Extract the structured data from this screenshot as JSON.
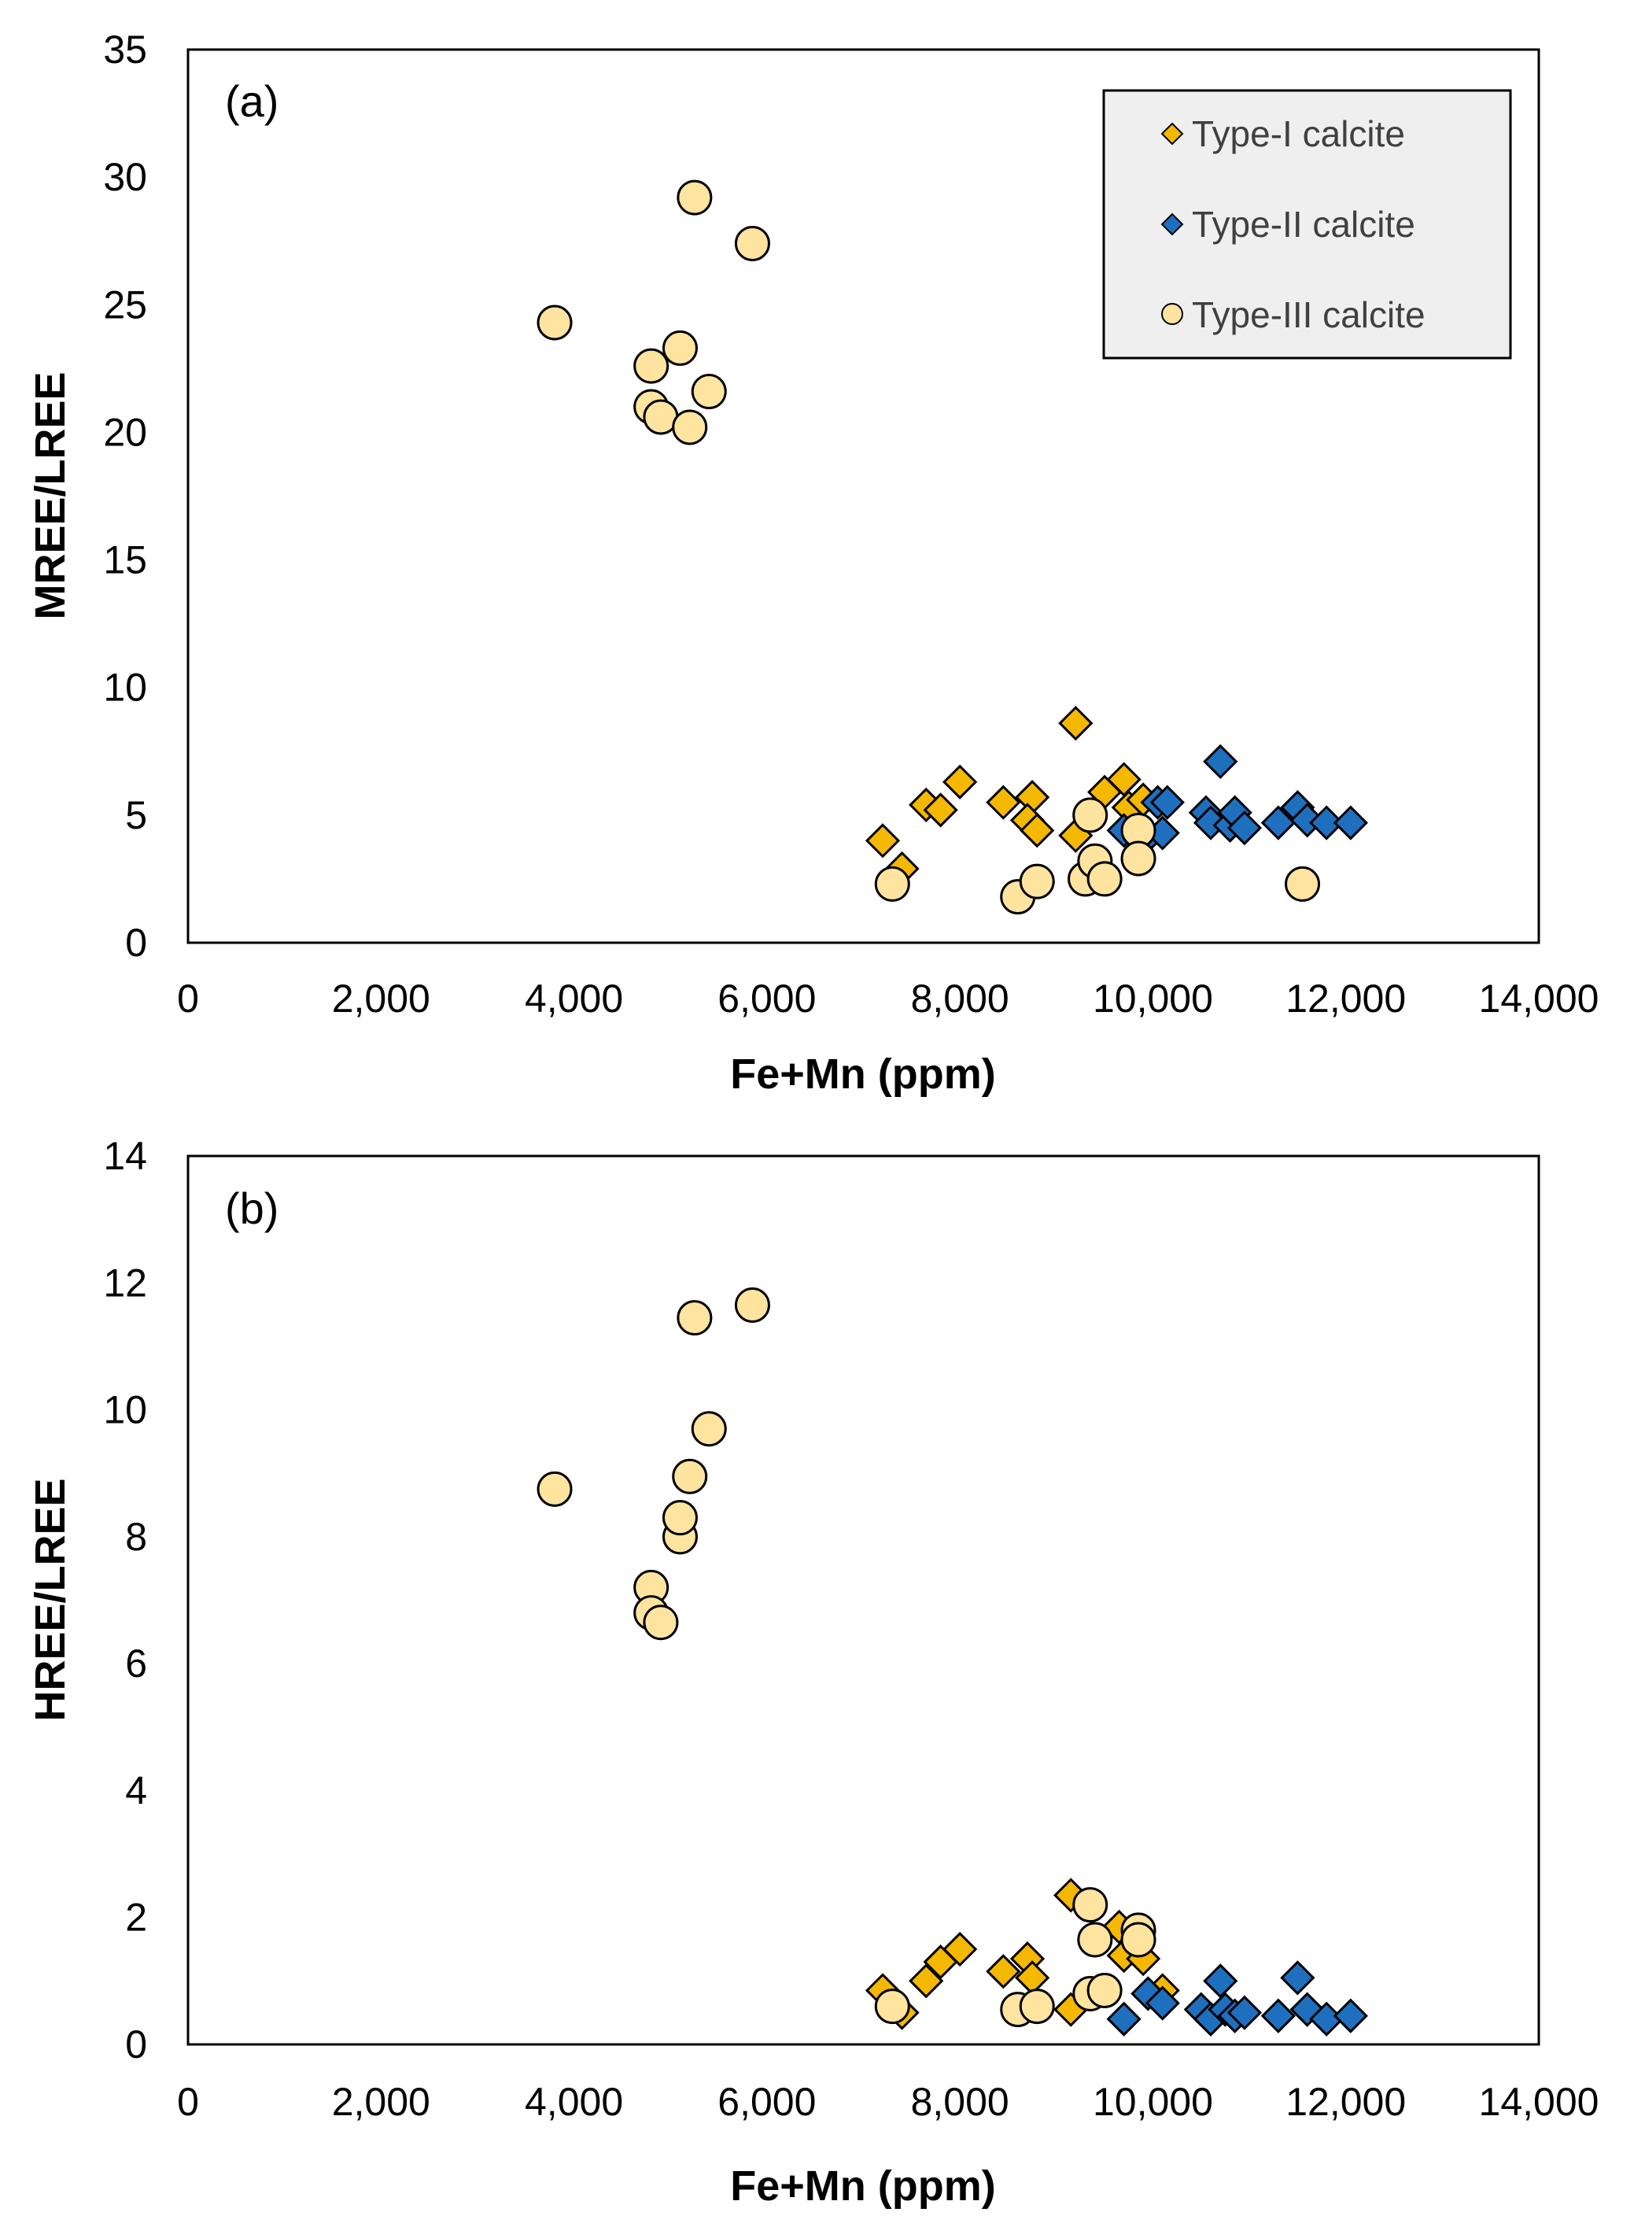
{
  "colors": {
    "type1_fill": "#F5B800",
    "type2_fill": "#1F6FBF",
    "type3_fill": "#FFE4A0",
    "marker_stroke": "#000000",
    "legend_bg": "#EFEFEF"
  },
  "legend": [
    {
      "label": "Type-I calcite",
      "marker": "diamond",
      "color_key": "type1_fill"
    },
    {
      "label": "Type-II calcite",
      "marker": "diamond",
      "color_key": "type2_fill"
    },
    {
      "label": "Type-III calcite",
      "marker": "circle",
      "color_key": "type3_fill"
    }
  ],
  "chart_data": [
    {
      "type": "scatter",
      "panel_label": "(a)",
      "xlabel": "Fe+Mn (ppm)",
      "ylabel": "MREE/LREE",
      "xlim": [
        0,
        14000
      ],
      "ylim": [
        0,
        35
      ],
      "xticks": [
        0,
        2000,
        4000,
        6000,
        8000,
        10000,
        12000,
        14000
      ],
      "xtick_labels": [
        "0",
        "2,000",
        "4,000",
        "6,000",
        "8,000",
        "10,000",
        "12,000",
        "14,000"
      ],
      "yticks": [
        0,
        5,
        10,
        15,
        20,
        25,
        30,
        35
      ],
      "ytick_labels": [
        "0",
        "5",
        "10",
        "15",
        "20",
        "25",
        "30",
        "35"
      ],
      "legend_position": "top-right",
      "series": [
        {
          "name": "Type-I calcite",
          "marker": "diamond",
          "color_key": "type1_fill",
          "points": [
            [
              7200,
              4.0
            ],
            [
              7400,
              2.9
            ],
            [
              7650,
              5.4
            ],
            [
              7800,
              5.2
            ],
            [
              8000,
              6.3
            ],
            [
              8450,
              5.5
            ],
            [
              8750,
              5.7
            ],
            [
              8700,
              4.8
            ],
            [
              8800,
              4.4
            ],
            [
              9200,
              8.6
            ],
            [
              9200,
              4.2
            ],
            [
              9500,
              5.9
            ],
            [
              9700,
              6.4
            ],
            [
              9750,
              5.3
            ],
            [
              9900,
              5.6
            ],
            [
              9900,
              4.1
            ]
          ]
        },
        {
          "name": "Type-II calcite",
          "marker": "diamond",
          "color_key": "type2_fill",
          "points": [
            [
              9700,
              4.4
            ],
            [
              9900,
              4.0
            ],
            [
              10050,
              5.5
            ],
            [
              10150,
              5.5
            ],
            [
              10100,
              4.3
            ],
            [
              10550,
              5.1
            ],
            [
              10600,
              4.7
            ],
            [
              10700,
              7.1
            ],
            [
              10800,
              4.6
            ],
            [
              10850,
              5.1
            ],
            [
              10950,
              4.5
            ],
            [
              11300,
              4.7
            ],
            [
              11500,
              5.3
            ],
            [
              11600,
              4.8
            ],
            [
              11800,
              4.7
            ],
            [
              12050,
              4.7
            ]
          ]
        },
        {
          "name": "Type-III calcite",
          "marker": "circle",
          "color_key": "type3_fill",
          "points": [
            [
              3800,
              24.3
            ],
            [
              4800,
              22.6
            ],
            [
              5100,
              23.3
            ],
            [
              4800,
              21.0
            ],
            [
              4900,
              20.6
            ],
            [
              5200,
              20.2
            ],
            [
              5400,
              21.6
            ],
            [
              5250,
              29.2
            ],
            [
              5850,
              27.4
            ],
            [
              7300,
              2.3
            ],
            [
              8600,
              1.8
            ],
            [
              8800,
              2.4
            ],
            [
              9300,
              2.5
            ],
            [
              9400,
              3.2
            ],
            [
              9500,
              2.5
            ],
            [
              9350,
              5.0
            ],
            [
              9850,
              4.4
            ],
            [
              9850,
              3.3
            ],
            [
              11550,
              2.3
            ]
          ]
        }
      ]
    },
    {
      "type": "scatter",
      "panel_label": "(b)",
      "xlabel": "Fe+Mn (ppm)",
      "ylabel": "HREE/LREE",
      "xlim": [
        0,
        14000
      ],
      "ylim": [
        0,
        14
      ],
      "xticks": [
        0,
        2000,
        4000,
        6000,
        8000,
        10000,
        12000,
        14000
      ],
      "xtick_labels": [
        "0",
        "2,000",
        "4,000",
        "6,000",
        "8,000",
        "10,000",
        "12,000",
        "14,000"
      ],
      "yticks": [
        0,
        2,
        4,
        6,
        8,
        10,
        12,
        14
      ],
      "ytick_labels": [
        "0",
        "2",
        "4",
        "6",
        "8",
        "10",
        "12",
        "14"
      ],
      "series": [
        {
          "name": "Type-I calcite",
          "marker": "diamond",
          "color_key": "type1_fill",
          "points": [
            [
              7200,
              0.85
            ],
            [
              7400,
              0.5
            ],
            [
              7650,
              1.0
            ],
            [
              7800,
              1.3
            ],
            [
              8000,
              1.5
            ],
            [
              8450,
              1.15
            ],
            [
              8700,
              1.35
            ],
            [
              8750,
              1.05
            ],
            [
              9150,
              2.35
            ],
            [
              9150,
              0.55
            ],
            [
              9650,
              1.85
            ],
            [
              9700,
              1.4
            ],
            [
              9900,
              1.35
            ],
            [
              10100,
              0.85
            ],
            [
              10600,
              0.4
            ],
            [
              11600,
              0.55
            ]
          ]
        },
        {
          "name": "Type-II calcite",
          "marker": "diamond",
          "color_key": "type2_fill",
          "points": [
            [
              9700,
              0.4
            ],
            [
              9950,
              0.8
            ],
            [
              10100,
              0.65
            ],
            [
              10500,
              0.55
            ],
            [
              10600,
              0.4
            ],
            [
              10700,
              1.0
            ],
            [
              10750,
              0.55
            ],
            [
              10850,
              0.45
            ],
            [
              10950,
              0.5
            ],
            [
              11300,
              0.45
            ],
            [
              11500,
              1.05
            ],
            [
              11600,
              0.55
            ],
            [
              11800,
              0.4
            ],
            [
              12050,
              0.45
            ]
          ]
        },
        {
          "name": "Type-III calcite",
          "marker": "circle",
          "color_key": "type3_fill",
          "points": [
            [
              3800,
              8.75
            ],
            [
              4800,
              7.2
            ],
            [
              4800,
              6.8
            ],
            [
              4900,
              6.65
            ],
            [
              5100,
              8.0
            ],
            [
              5100,
              8.3
            ],
            [
              5200,
              8.95
            ],
            [
              5250,
              11.45
            ],
            [
              5400,
              9.7
            ],
            [
              5850,
              11.65
            ],
            [
              7300,
              0.6
            ],
            [
              8600,
              0.55
            ],
            [
              8800,
              0.6
            ],
            [
              9350,
              0.8
            ],
            [
              9350,
              2.2
            ],
            [
              9400,
              1.65
            ],
            [
              9500,
              0.85
            ],
            [
              9850,
              1.8
            ],
            [
              9850,
              1.65
            ]
          ]
        }
      ]
    }
  ]
}
